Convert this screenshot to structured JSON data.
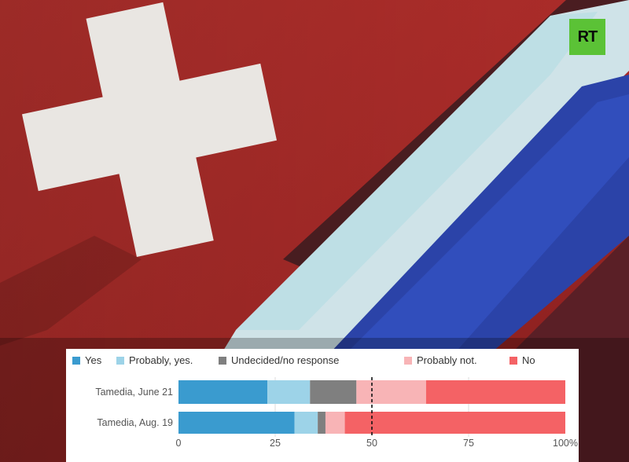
{
  "logo": {
    "text": "RT",
    "color": "#5bc236"
  },
  "chart_data": {
    "type": "bar",
    "orientation": "horizontal",
    "stacked": true,
    "categories": [
      "Tamedia, June 21",
      "Tamedia, Aug. 19"
    ],
    "series": [
      {
        "name": "Yes",
        "color": "#3a9bcf",
        "values": [
          23,
          30
        ]
      },
      {
        "name": "Probably, yes.",
        "color": "#9dd3e8",
        "values": [
          11,
          6
        ]
      },
      {
        "name": "Undecided/no response",
        "color": "#7f7f7f",
        "values": [
          12,
          2
        ]
      },
      {
        "name": "Probably not.",
        "color": "#f8b4b6",
        "values": [
          18,
          5
        ]
      },
      {
        "name": "No",
        "color": "#f46265",
        "values": [
          36,
          57
        ]
      }
    ],
    "x_ticks": [
      "0",
      "25",
      "50",
      "75",
      "100%"
    ],
    "xlim": [
      0,
      100
    ],
    "reference_line": 50,
    "legend_position": "top"
  }
}
